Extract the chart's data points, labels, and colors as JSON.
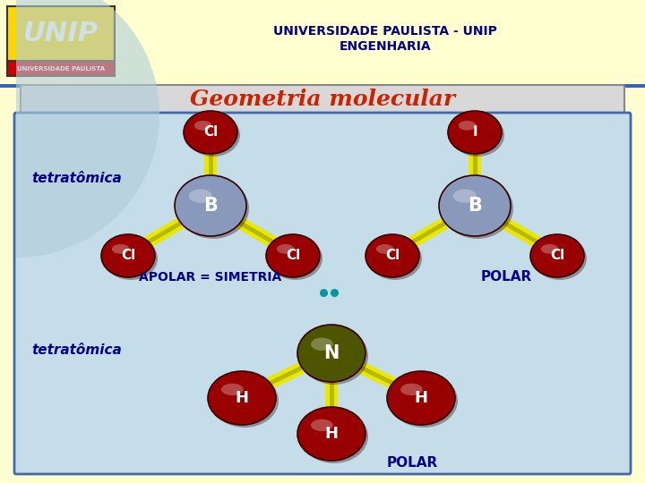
{
  "bg_color": "#ffffd0",
  "header_text1": "UNIVERSIDADE PAULISTA - UNIP",
  "header_text2": "ENGENHARIA",
  "header_color": "#00008B",
  "title": "Geometria molecular",
  "title_color": "#cc2200",
  "content_bg": "#c5dde8",
  "content_border": "#4466aa",
  "label_tetatomica": "tetratômica",
  "label_color": "#00008B",
  "apolar_label": "APOLAR = SIMETRIA",
  "polar_label1": "POLAR",
  "polar_label2": "POLAR",
  "atom_dark_red": "#990000",
  "atom_blue_gray": "#8899bb",
  "atom_olive": "#4d5500",
  "bond_color": "#e8e800",
  "bond_shadow": "#999900",
  "lone_pair_color": "#009999",
  "logo_yellow": "#FFD700",
  "logo_red": "#CC0000",
  "header_line_color": "#3366bb",
  "title_box_bg": "#d8d8d8",
  "title_box_border": "#888888",
  "inner_curve_color": "#b0ccd8"
}
